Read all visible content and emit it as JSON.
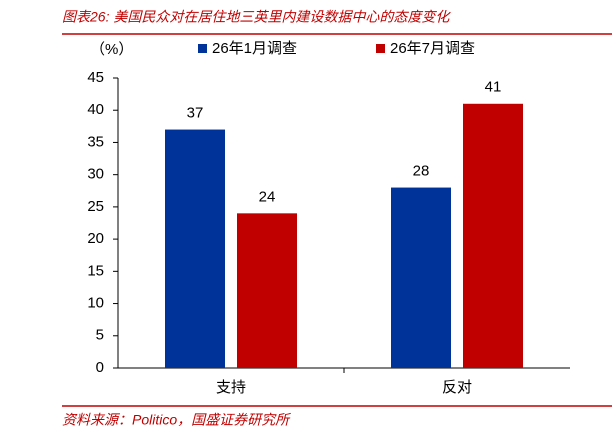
{
  "chart_data": {
    "type": "bar",
    "title": "图表26:  美国民众对在居住地三英里内建设数据中心的态度变化",
    "y_unit": "（%）",
    "categories": [
      "支持",
      "反对"
    ],
    "series": [
      {
        "name": "26年1月调查",
        "color": "#003399",
        "values": [
          37,
          28
        ]
      },
      {
        "name": "26年7月调查",
        "color": "#c00000",
        "values": [
          24,
          41
        ]
      }
    ],
    "ylim": [
      0,
      45
    ],
    "yticks": [
      0,
      5,
      10,
      15,
      20,
      25,
      30,
      35,
      40,
      45
    ],
    "source": "资料来源：Politico，国盛证券研究所"
  }
}
